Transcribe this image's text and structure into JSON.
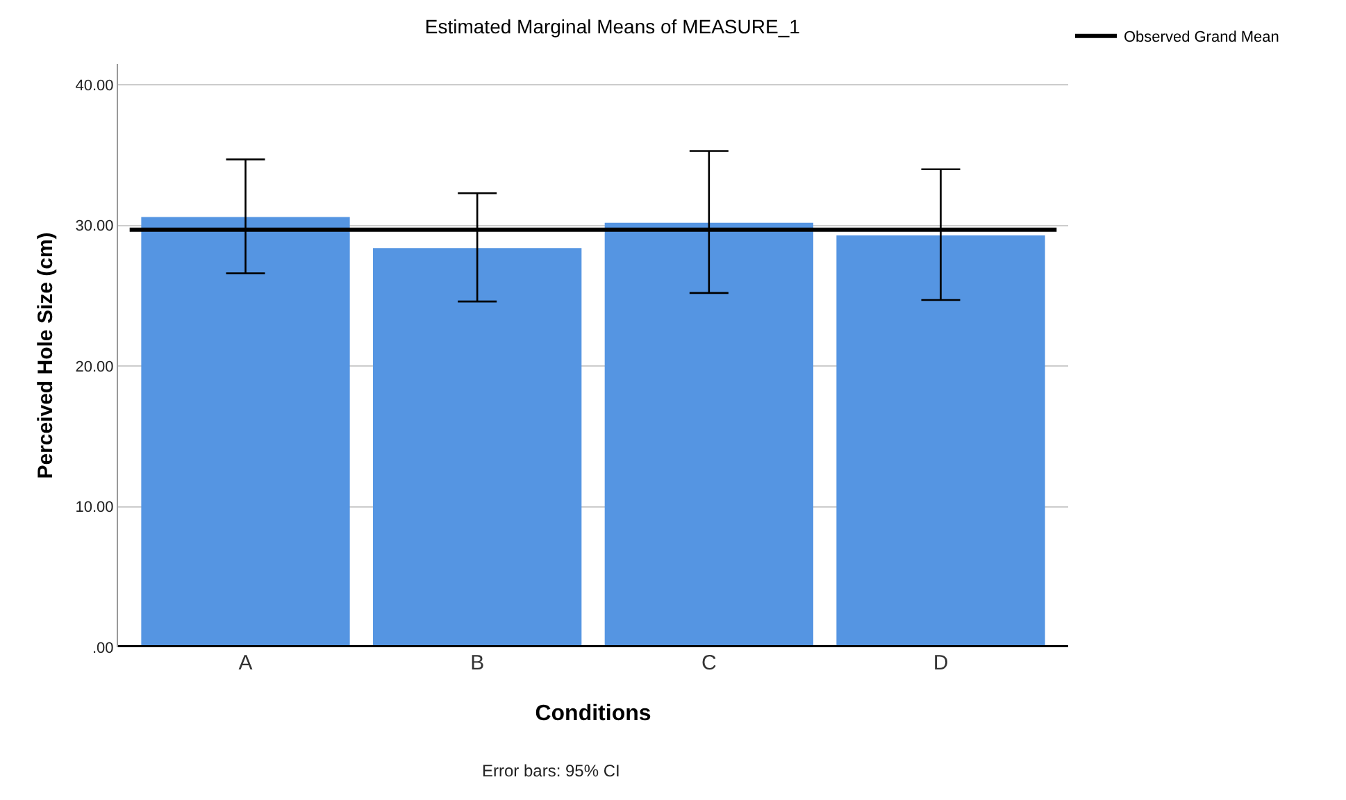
{
  "chart_data": {
    "type": "bar",
    "title": "Estimated Marginal Means of MEASURE_1",
    "xlabel": "Conditions",
    "ylabel": "Perceived Hole Size (cm)",
    "categories": [
      "A",
      "B",
      "C",
      "D"
    ],
    "values": [
      30.6,
      28.4,
      30.2,
      29.3
    ],
    "errors": [
      [
        26.6,
        34.7
      ],
      [
        24.6,
        32.3
      ],
      [
        25.2,
        35.3
      ],
      [
        24.7,
        34.0
      ]
    ],
    "color": "#5595e2",
    "ylim": [
      0,
      41.5
    ],
    "yticks": [
      {
        "value": 0,
        "label": ".00"
      },
      {
        "value": 10,
        "label": "10.00"
      },
      {
        "value": 20,
        "label": "20.00"
      },
      {
        "value": 30,
        "label": "30.00"
      },
      {
        "value": 40,
        "label": "40.00"
      }
    ],
    "grid": "y",
    "legend": "top right",
    "ref_lines": [
      {
        "axis": "y",
        "value": 29.7,
        "label": "Observed Grand Mean",
        "color": "#000000"
      }
    ],
    "annotations": [
      "Error bars: 95% CI"
    ]
  }
}
